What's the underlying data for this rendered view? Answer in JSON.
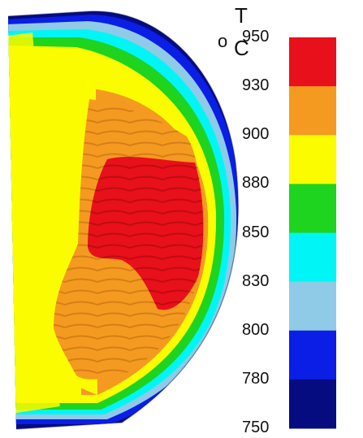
{
  "legend": {
    "variable": "T",
    "unit_degree": "o",
    "unit_letter": "C",
    "ticks": [
      "950",
      "930",
      "900",
      "880",
      "850",
      "830",
      "800",
      "780",
      "750"
    ],
    "band_colors": [
      "#e8101a",
      "#f59a20",
      "#fcfc00",
      "#1ed41e",
      "#00f6f6",
      "#8fcbe6",
      "#0a1ee6",
      "#040c80"
    ]
  },
  "colors": {
    "dark_blue": "#040c80",
    "blue": "#0a1ee6",
    "light_blue": "#8fcbe6",
    "cyan": "#00f6f6",
    "green": "#1ed41e",
    "yellow": "#fcfc00",
    "orange": "#f59a20",
    "red": "#e8101a"
  }
}
